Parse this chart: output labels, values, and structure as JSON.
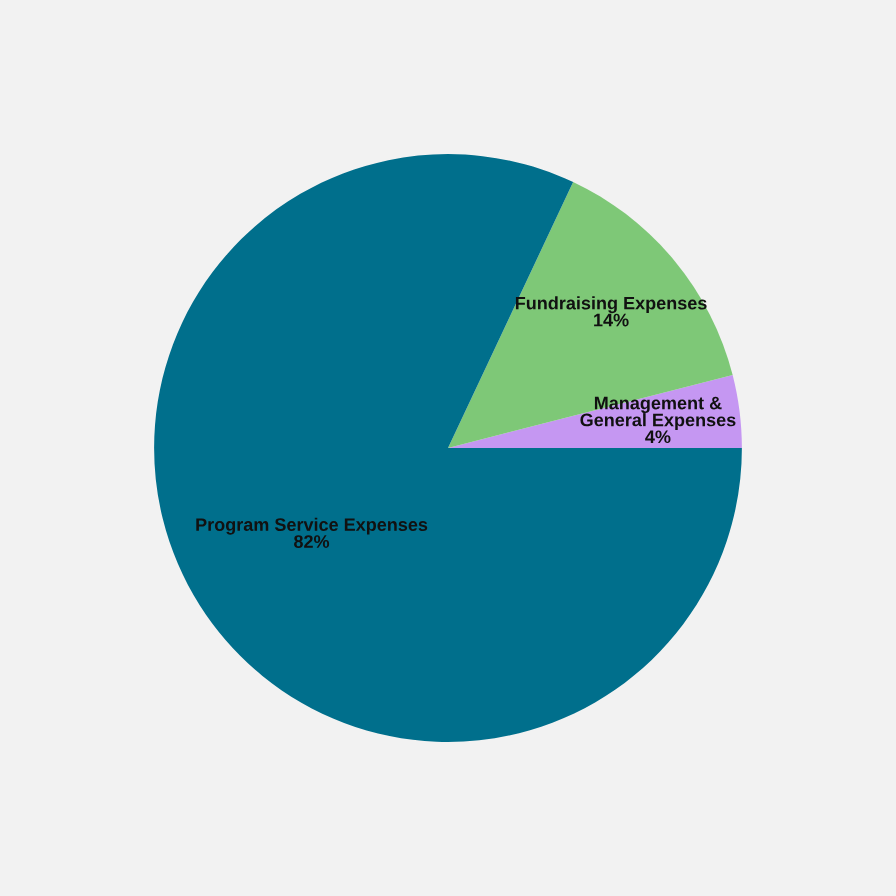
{
  "chart_data": {
    "type": "pie",
    "categories": [
      "Management &\nGeneral Expenses",
      "Fundraising Expenses",
      "Program Service Expenses"
    ],
    "values": [
      4,
      14,
      82
    ],
    "colors": [
      "#c597f2",
      "#7ec877",
      "#006f8c"
    ],
    "value_labels": [
      "4%",
      "14%",
      "82%"
    ]
  }
}
